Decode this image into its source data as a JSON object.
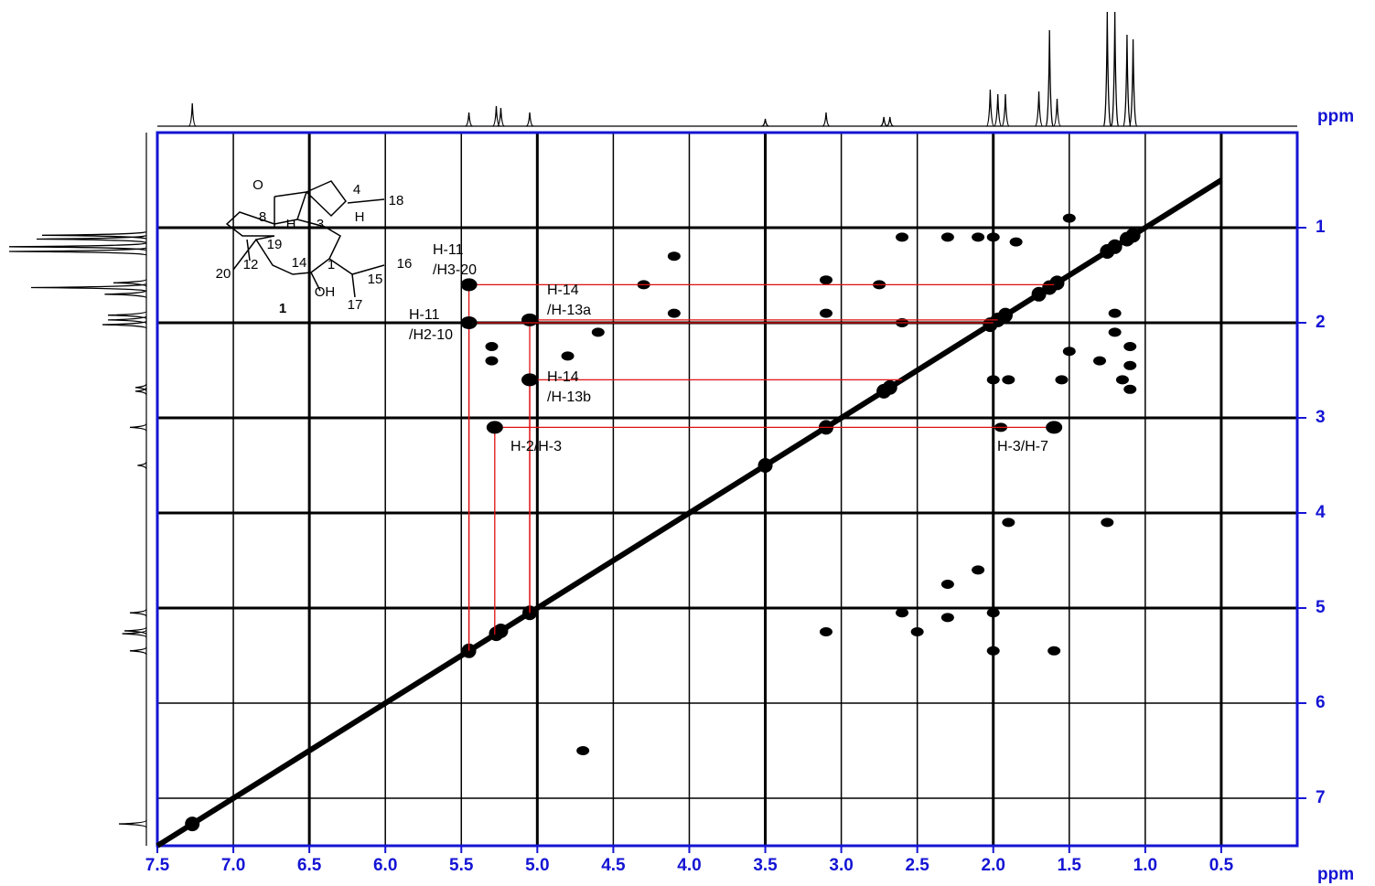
{
  "chart_data": {
    "type": "cosy",
    "x_label": "ppm",
    "y_label": "ppm",
    "xlim": [
      7.5,
      0
    ],
    "ylim": [
      0,
      7.5
    ],
    "xticks": [
      7.5,
      {
        "value": 7,
        "label": "7.0"
      },
      6.5,
      {
        "value": 6,
        "label": "6.0"
      },
      5.5,
      {
        "value": 5,
        "label": "5.0"
      },
      4.5,
      {
        "value": 4,
        "label": "4.0"
      },
      3.5,
      {
        "value": 3,
        "label": "3.0"
      },
      2.5,
      {
        "value": 2,
        "label": "2.0"
      },
      1.5,
      {
        "value": 1,
        "label": "1.0"
      },
      0.5
    ],
    "yticks": [
      1,
      2,
      3,
      4,
      5,
      6,
      7
    ],
    "grid": true,
    "axis_color": "#1414d4",
    "peak_color": "#000000",
    "link_color": "#e01010",
    "projection": {
      "x": [
        7.27,
        5.45,
        5.27,
        5.24,
        5.05,
        3.5,
        3.1,
        2.72,
        2.68,
        2.02,
        1.97,
        1.92,
        1.7,
        1.63,
        1.58,
        1.25,
        1.2,
        1.12,
        1.08
      ],
      "values": [
        25,
        15,
        22,
        20,
        15,
        8,
        15,
        10,
        10,
        40,
        35,
        35,
        38,
        105,
        30,
        125,
        125,
        100,
        95
      ]
    },
    "peaks": {
      "x": [
        4.1,
        4.1,
        3.1,
        3.1,
        2.6,
        2.75,
        2.6,
        2.3,
        2.1,
        2.0,
        1.85,
        1.5,
        2.0,
        1.9,
        1.55,
        1.15,
        1.1,
        1.3,
        1.5,
        1.2,
        1.2,
        1.1,
        1.1,
        5.3,
        5.3,
        4.8,
        4.6,
        1.25,
        1.9,
        2.0,
        2.6,
        2.0,
        1.6,
        3.1,
        2.3,
        2.5,
        2.3,
        2.1,
        4.3,
        4.7,
        1.95
      ],
      "y": [
        1.3,
        1.9,
        1.55,
        1.9,
        2.0,
        1.6,
        1.1,
        1.1,
        1.1,
        1.1,
        1.15,
        0.9,
        2.6,
        2.6,
        2.6,
        2.6,
        2.7,
        2.4,
        2.3,
        1.9,
        2.1,
        2.25,
        2.45,
        2.25,
        2.4,
        2.35,
        2.1,
        4.1,
        4.1,
        5.05,
        5.05,
        5.45,
        5.45,
        5.25,
        5.1,
        5.25,
        4.75,
        4.6,
        1.6,
        6.5,
        3.1
      ]
    },
    "correlations": [
      {
        "label": [
          "H-11",
          "/H3-20"
        ],
        "x": 5.45,
        "y": 1.6
      },
      {
        "label": [
          "H-14",
          "/H-13a"
        ],
        "x": 5.05,
        "y": 1.97
      },
      {
        "label": [
          "H-11",
          "/H2-10"
        ],
        "x": 5.45,
        "y": 2.0
      },
      {
        "label": [
          "H-14",
          "/H-13b"
        ],
        "x": 5.05,
        "y": 2.6
      },
      {
        "label": [
          "H-2/H-3"
        ],
        "x": 5.28,
        "y": 3.1
      },
      {
        "label": [
          "H-3/H-7"
        ],
        "x": 1.6,
        "y": 3.1
      }
    ],
    "structure": {
      "labels": [
        "O",
        "4",
        "18",
        "8",
        "H",
        "3",
        "H",
        "19",
        "20",
        "12",
        "14",
        "1",
        "16",
        "15",
        "OH",
        "17",
        "1"
      ]
    }
  }
}
